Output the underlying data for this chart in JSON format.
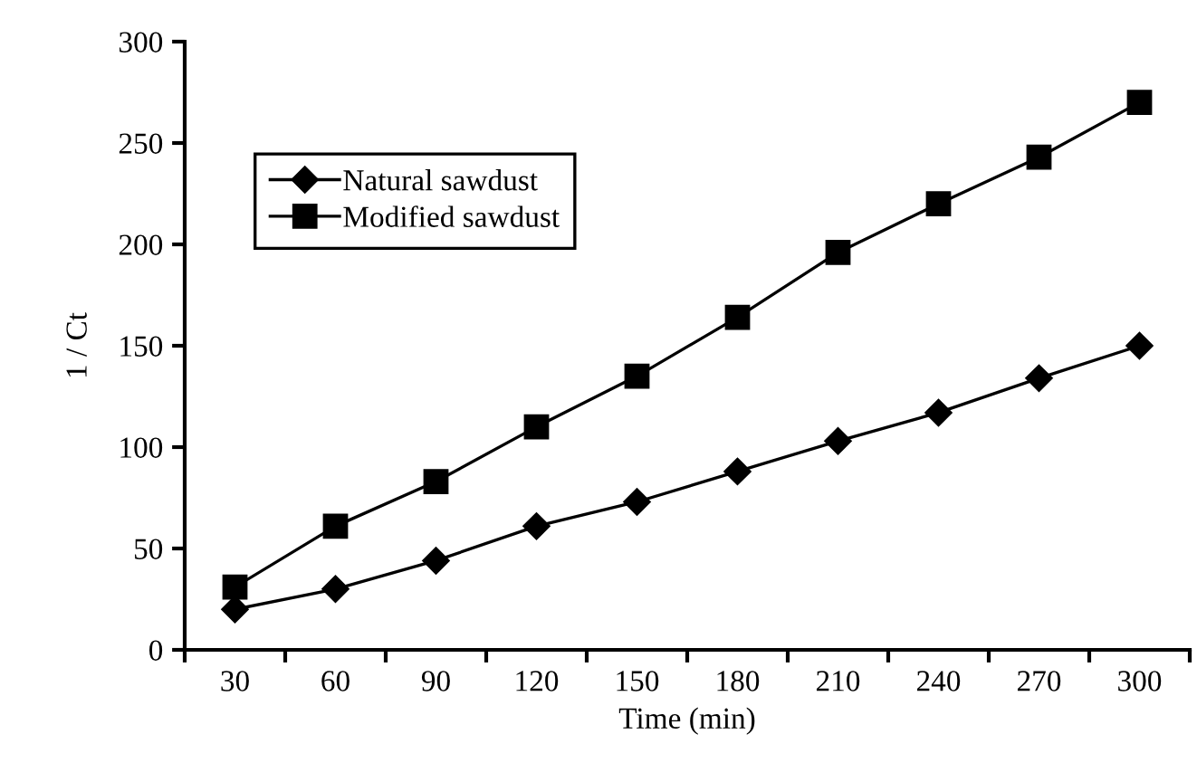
{
  "chart_data": {
    "type": "line",
    "xlabel": "Time (min)",
    "ylabel": "1 / Ct",
    "categories": [
      "30",
      "60",
      "90",
      "120",
      "150",
      "180",
      "210",
      "240",
      "270",
      "300"
    ],
    "series": [
      {
        "name": "Natural sawdust",
        "color": "#000000",
        "marker": "diamond",
        "values": [
          20,
          30,
          44,
          61,
          73,
          88,
          103,
          117,
          134,
          150
        ]
      },
      {
        "name": "Modified sawdust",
        "color": "#000000",
        "marker": "square",
        "values": [
          31,
          61,
          83,
          110,
          135,
          164,
          196,
          220,
          243,
          270
        ]
      }
    ],
    "ylim": [
      0,
      300
    ],
    "yticks": [
      0,
      50,
      100,
      150,
      200,
      250,
      300
    ],
    "grid": false,
    "legend": "top left",
    "line_style": "solid"
  }
}
